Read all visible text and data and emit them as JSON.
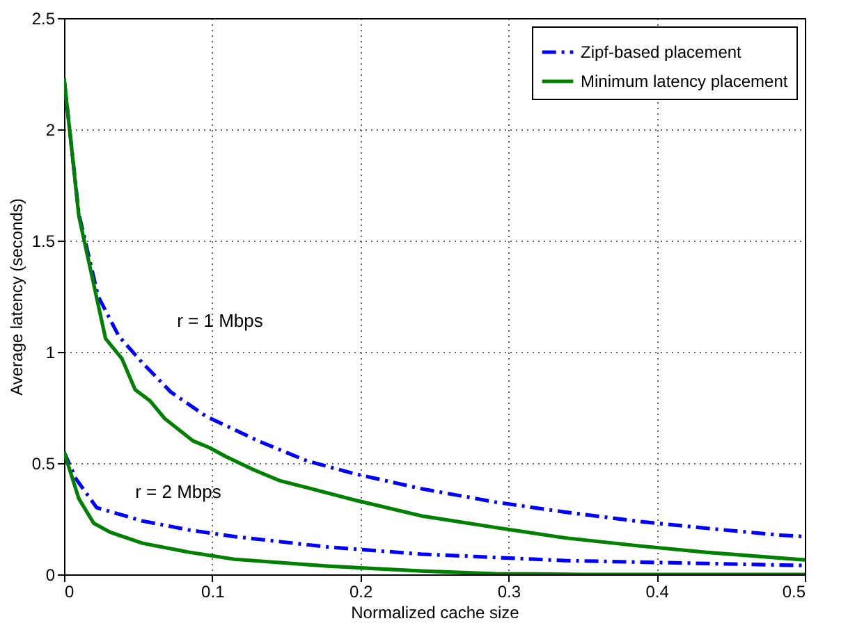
{
  "chart_data": {
    "type": "line",
    "xlabel": "Normalized cache size",
    "ylabel": "Average latency (seconds)",
    "xlim": [
      0,
      0.5
    ],
    "xticks": [
      0,
      0.1,
      0.2,
      0.3,
      0.4,
      0.5
    ],
    "ylim": [
      0,
      2.5
    ],
    "yticks": [
      0,
      0.5,
      1,
      1.5,
      2,
      2.5
    ],
    "grid": true,
    "legend": "top right",
    "marker": "none",
    "annotations": [
      "r = 1 Mbps",
      "r = 2 Mbps"
    ],
    "series": [
      {
        "name": "Zipf-based placement",
        "color": "#0000ff",
        "line_style": "dashed",
        "x": [
          0,
          0.01,
          0.023,
          0.037,
          0.053,
          0.072,
          0.096,
          0.131,
          0.164,
          0.195,
          0.241,
          0.291,
          0.338,
          0.388,
          0.437,
          0.484,
          0.5
        ],
        "values": [
          2.23,
          1.62,
          1.25,
          1.07,
          0.95,
          0.82,
          0.71,
          0.6,
          0.51,
          0.454,
          0.385,
          0.325,
          0.28,
          0.238,
          0.205,
          0.176,
          0.17
        ]
      },
      {
        "name": "Minimum latency placement",
        "color": "#008000",
        "line_style": "solid",
        "x": [
          0,
          0.01,
          0.028,
          0.039,
          0.048,
          0.058,
          0.068,
          0.087,
          0.098,
          0.109,
          0.128,
          0.146,
          0.164,
          0.195,
          0.241,
          0.291,
          0.338,
          0.388,
          0.437,
          0.484,
          0.5
        ],
        "values": [
          2.23,
          1.61,
          1.06,
          0.97,
          0.83,
          0.78,
          0.7,
          0.6,
          0.57,
          0.53,
          0.47,
          0.42,
          0.39,
          0.336,
          0.263,
          0.211,
          0.164,
          0.128,
          0.097,
          0.073,
          0.065
        ]
      },
      {
        "color": "#0000ff",
        "line_style": "dashed",
        "x": [
          0,
          0.008,
          0.022,
          0.053,
          0.084,
          0.115,
          0.178,
          0.241,
          0.338,
          0.484,
          0.5
        ],
        "values": [
          0.55,
          0.43,
          0.3,
          0.24,
          0.2,
          0.17,
          0.123,
          0.091,
          0.062,
          0.042,
          0.04
        ]
      },
      {
        "color": "#008000",
        "line_style": "solid",
        "x": [
          0,
          0.01,
          0.02,
          0.031,
          0.053,
          0.084,
          0.115,
          0.178,
          0.241,
          0.291,
          0.35,
          0.5
        ],
        "values": [
          0.55,
          0.34,
          0.23,
          0.19,
          0.14,
          0.1,
          0.068,
          0.037,
          0.015,
          0.003,
          0,
          0
        ]
      }
    ]
  }
}
